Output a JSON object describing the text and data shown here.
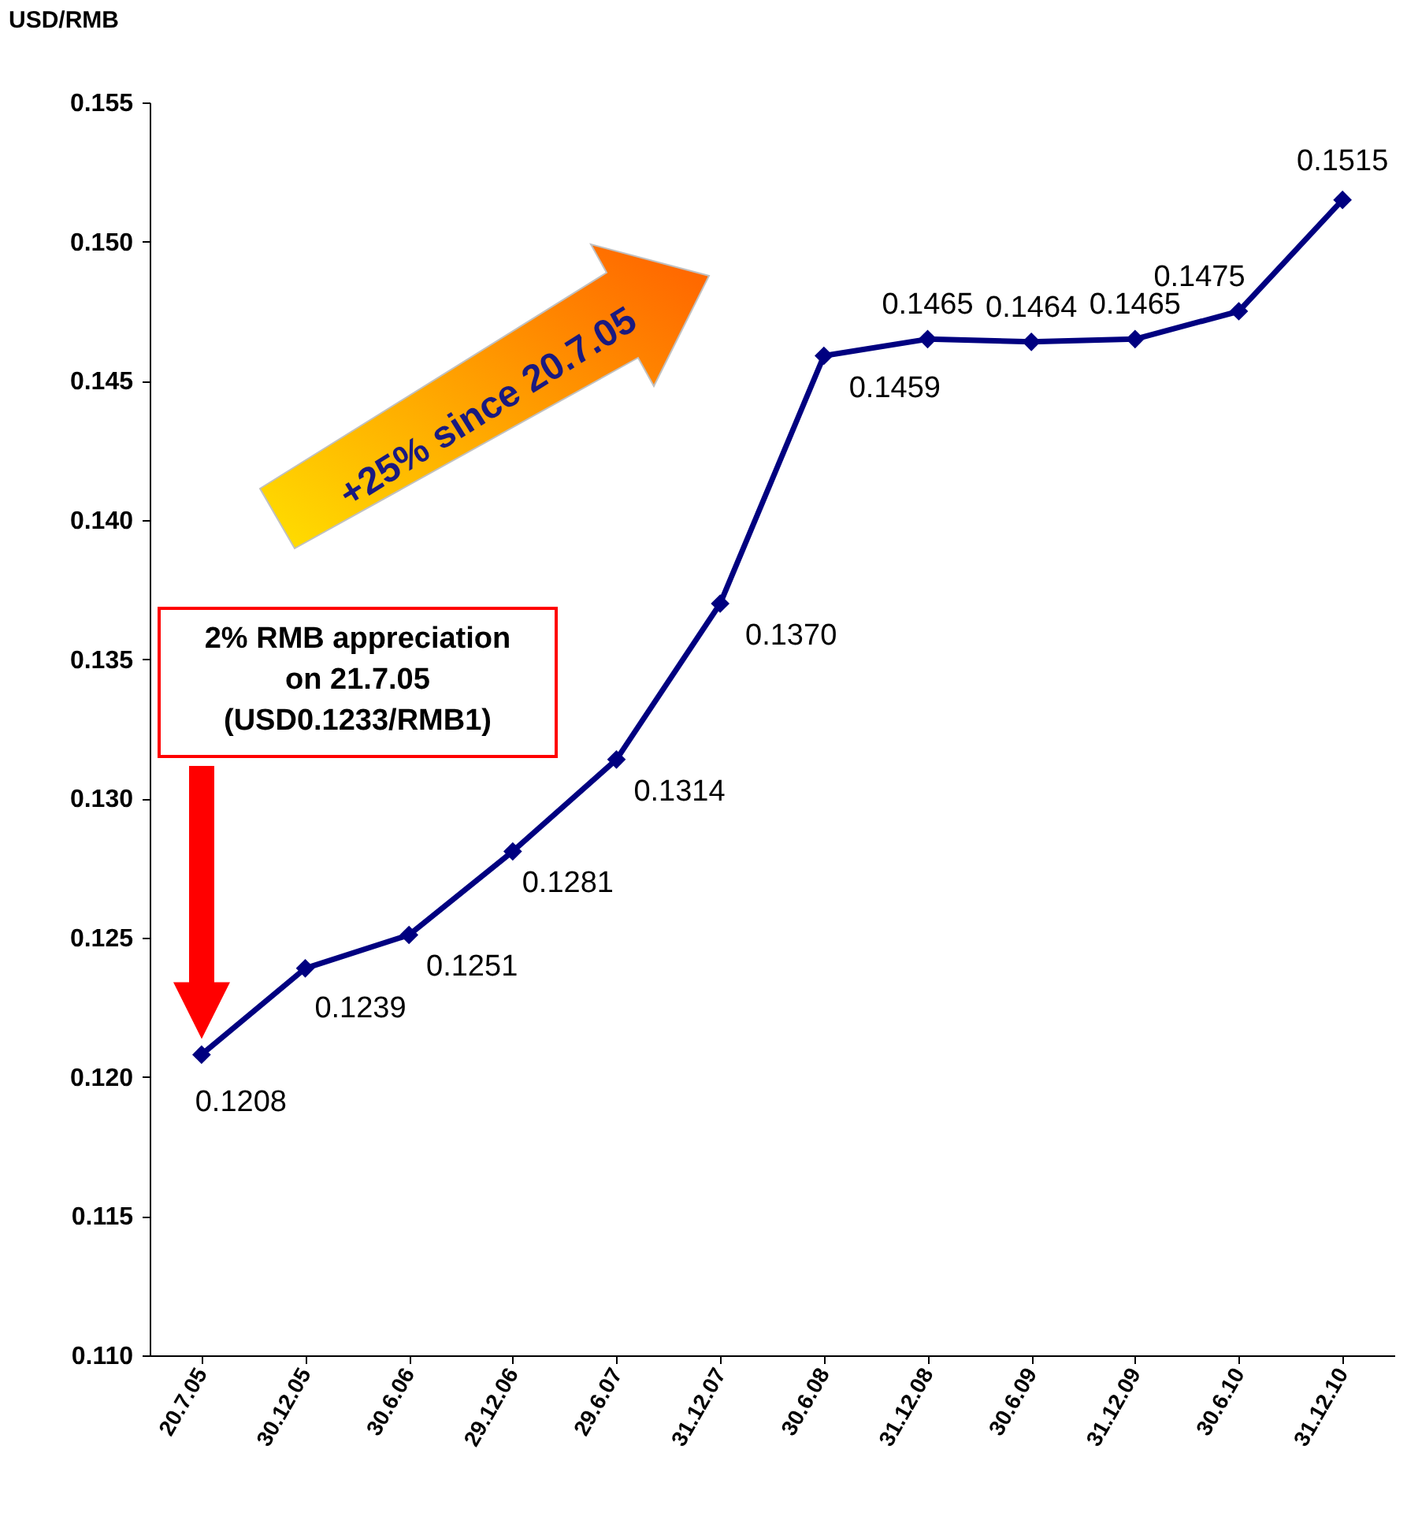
{
  "chart_data": {
    "type": "line",
    "ylabel": "USD/RMB",
    "categories": [
      "20.7.05",
      "30.12.05",
      "30.6.06",
      "29.12.06",
      "29.6.07",
      "31.12.07",
      "30.6.08",
      "31.12.08",
      "30.6.09",
      "31.12.09",
      "30.6.10",
      "31.12.10"
    ],
    "series": [
      {
        "color": "#000080",
        "values": [
          0.1208,
          0.1239,
          0.1251,
          0.1281,
          0.1314,
          0.137,
          0.1459,
          0.1465,
          0.1464,
          0.1465,
          0.1475,
          0.1515
        ],
        "value_labels": [
          "0.1208",
          "0.1239",
          "0.1251",
          "0.1281",
          "0.1314",
          "0.1370",
          "0.1459",
          "0.1465",
          "0.1464",
          "0.1465",
          "0.1475",
          "0.1515"
        ]
      }
    ],
    "ylim": [
      0.11,
      0.155
    ],
    "yticks": [
      {
        "value": 0.11,
        "label": "0.110"
      },
      {
        "value": 0.115,
        "label": "0.115"
      },
      {
        "value": 0.12,
        "label": "0.120"
      },
      {
        "value": 0.125,
        "label": "0.125"
      },
      {
        "value": 0.13,
        "label": "0.130"
      },
      {
        "value": 0.135,
        "label": "0.135"
      },
      {
        "value": 0.14,
        "label": "0.140"
      },
      {
        "value": 0.145,
        "label": "0.145"
      },
      {
        "value": 0.15,
        "label": "0.150"
      },
      {
        "value": 0.155,
        "label": "0.155"
      }
    ],
    "annotations": [
      "2% RMB appreciation\non 21.7.05\n(USD0.1233/RMB1)",
      "+25% since 20.7.05"
    ],
    "grid": false,
    "marker": "diamond",
    "line_style": "solid",
    "legend": false
  }
}
